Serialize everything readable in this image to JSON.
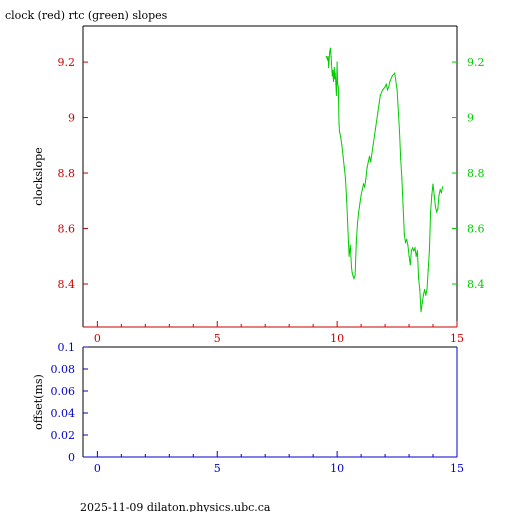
{
  "title": "clock (red) rtc (green) slopes",
  "footer": "2025-11-09  dilaton.physics.ubc.ca",
  "colors": {
    "left_axis": "#cc0000",
    "right_axis": "#00cc00",
    "bottom_axis": "#0000cc",
    "rtc_line": "#00cc00",
    "frame": "#000000"
  },
  "chart_data": [
    {
      "type": "line",
      "title": "clock (red) rtc (green) slopes",
      "ylabel": "clockslope",
      "xlim": [
        -0.6,
        15
      ],
      "ylim": [
        8.245,
        9.33
      ],
      "x_ticks": [
        0,
        5,
        10,
        15
      ],
      "y_ticks": [
        8.4,
        8.6,
        8.8,
        9,
        9.2
      ],
      "y_tick_labels": [
        "8.4",
        "8.6",
        "8.8",
        "9",
        "9.2"
      ],
      "grid": false,
      "series": [
        {
          "name": "rtc",
          "color": "#00cc00",
          "x": [
            9.55,
            9.6,
            9.62,
            9.65,
            9.68,
            9.7,
            9.72,
            9.75,
            9.78,
            9.8,
            9.82,
            9.85,
            9.88,
            9.9,
            9.92,
            9.95,
            9.97,
            10.0,
            10.02,
            10.05,
            10.08,
            10.1,
            10.15,
            10.2,
            10.25,
            10.3,
            10.35,
            10.4,
            10.45,
            10.5,
            10.55,
            10.6,
            10.63,
            10.66,
            10.7,
            10.75,
            10.8,
            10.85,
            10.9,
            10.95,
            11.0,
            11.05,
            11.1,
            11.15,
            11.2,
            11.25,
            11.3,
            11.35,
            11.4,
            11.5,
            11.6,
            11.7,
            11.8,
            11.9,
            12.0,
            12.05,
            12.1,
            12.15,
            12.2,
            12.3,
            12.4,
            12.5,
            12.6,
            12.65,
            12.7,
            12.75,
            12.8,
            12.85,
            12.9,
            12.95,
            13.0,
            13.05,
            13.1,
            13.15,
            13.2,
            13.25,
            13.3,
            13.35,
            13.4,
            13.45,
            13.5,
            13.55,
            13.6,
            13.65,
            13.7,
            13.75,
            13.8,
            13.85,
            13.9,
            13.95,
            14.0,
            14.05,
            14.1,
            14.15,
            14.2,
            14.25,
            14.3,
            14.35,
            14.4
          ],
          "values": [
            9.22,
            9.21,
            9.22,
            9.18,
            9.23,
            9.24,
            9.25,
            9.22,
            9.17,
            9.15,
            9.17,
            9.13,
            9.18,
            9.14,
            9.16,
            9.12,
            9.08,
            9.2,
            9.12,
            9.11,
            8.98,
            8.95,
            8.93,
            8.9,
            8.86,
            8.82,
            8.78,
            8.7,
            8.6,
            8.5,
            8.54,
            8.46,
            8.44,
            8.43,
            8.42,
            8.43,
            8.55,
            8.62,
            8.66,
            8.69,
            8.72,
            8.74,
            8.76,
            8.75,
            8.78,
            8.82,
            8.84,
            8.86,
            8.84,
            8.9,
            8.96,
            9.02,
            9.08,
            9.1,
            9.11,
            9.12,
            9.1,
            9.11,
            9.13,
            9.15,
            9.16,
            9.1,
            8.95,
            8.85,
            8.78,
            8.68,
            8.58,
            8.55,
            8.56,
            8.54,
            8.5,
            8.47,
            8.52,
            8.53,
            8.52,
            8.53,
            8.5,
            8.52,
            8.42,
            8.38,
            8.3,
            8.33,
            8.36,
            8.38,
            8.36,
            8.38,
            8.45,
            8.52,
            8.66,
            8.72,
            8.76,
            8.72,
            8.68,
            8.66,
            8.67,
            8.72,
            8.74,
            8.73,
            8.75
          ]
        }
      ]
    },
    {
      "type": "line",
      "ylabel": "offset(ms)",
      "xlim": [
        -0.6,
        15
      ],
      "ylim": [
        0,
        0.1
      ],
      "x_ticks": [
        0,
        5,
        10,
        15
      ],
      "y_ticks": [
        0,
        0.02,
        0.04,
        0.06,
        0.08,
        0.1
      ],
      "y_tick_labels": [
        "0",
        "0.02",
        "0.04",
        "0.06",
        "0.08",
        "0.1"
      ],
      "grid": false,
      "series": []
    }
  ]
}
